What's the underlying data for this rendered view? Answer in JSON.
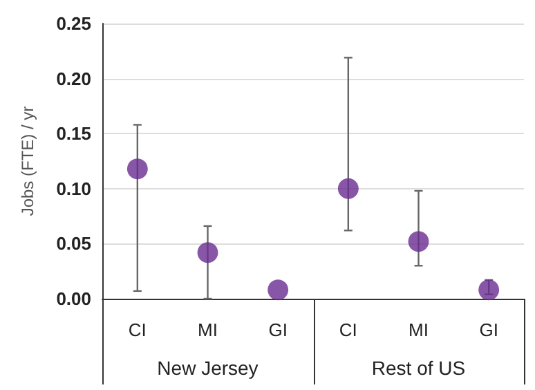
{
  "chart_data": {
    "type": "scatter",
    "ylabel": "Jobs (FTE) / yr",
    "categories": [
      "CI",
      "MI",
      "GI",
      "CI",
      "MI",
      "GI"
    ],
    "values": [
      0.118,
      0.042,
      0.008,
      0.1,
      0.052,
      0.008
    ],
    "errors": [
      [
        0.007,
        0.158
      ],
      [
        0.0,
        0.066
      ],
      null,
      [
        0.062,
        0.219
      ],
      [
        0.03,
        0.098
      ],
      [
        0.004,
        0.017
      ]
    ],
    "color": "#6a2c91",
    "marker": "circle",
    "grid": "y",
    "ylim": [
      0,
      0.25
    ],
    "yticks": [
      {
        "value": 0,
        "label": "0.00"
      },
      0.05,
      {
        "value": 0.1,
        "label": "0.10"
      },
      0.15,
      {
        "value": 0.2,
        "label": "0.20"
      },
      0.25
    ],
    "annotations": [
      "New Jersey",
      "Rest of US"
    ]
  }
}
